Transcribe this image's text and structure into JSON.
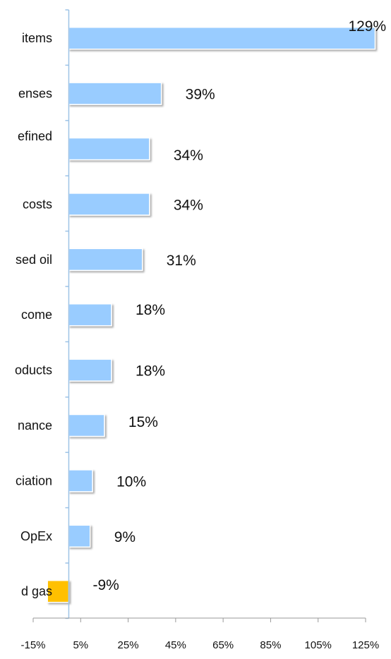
{
  "chart_data": {
    "type": "bar",
    "orientation": "horizontal",
    "categories": [
      "items",
      "enses",
      "efined",
      "costs",
      "sed oil",
      "come",
      "oducts",
      "nance",
      "ciation",
      "OpEx",
      "d gas"
    ],
    "values": [
      129,
      39,
      34,
      34,
      31,
      18,
      18,
      15,
      10,
      9,
      -9
    ],
    "value_labels": [
      "129%",
      "39%",
      "34%",
      "34%",
      "31%",
      "18%",
      "18%",
      "15%",
      "10%",
      "9%",
      "-9%"
    ],
    "xlim": [
      -15,
      130
    ],
    "x_ticks": [
      -15,
      5,
      25,
      45,
      65,
      85,
      105,
      125
    ],
    "x_tick_labels": [
      "-15%",
      "5%",
      "25%",
      "45%",
      "65%",
      "85%",
      "105%",
      "125%"
    ],
    "grid": false,
    "legend": "none",
    "colors": {
      "positive": "#99ccff",
      "negative": "#ffc000",
      "axis": "#9dc3e6",
      "bottom_axis": "#999999"
    }
  }
}
